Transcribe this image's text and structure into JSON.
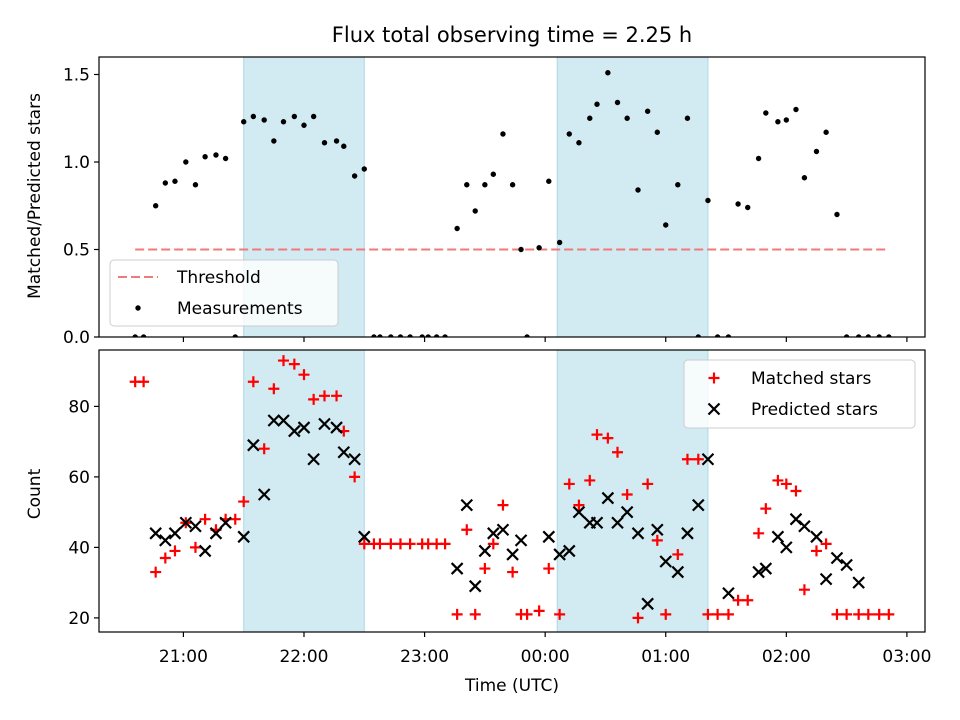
{
  "chart_data": [
    {
      "type": "scatter",
      "title": "Flux total observing time = 2.25 h",
      "ylabel": "Matched/Predicted stars",
      "xlabel": "",
      "ylim": [
        0.0,
        1.6
      ],
      "yticks": [
        0.0,
        0.5,
        1.0,
        1.5
      ],
      "ytick_labels": [
        "0.0",
        "0.5",
        "1.0",
        "1.5"
      ],
      "xlim_hours": [
        -3.7,
        3.15
      ],
      "xticks_hours": [
        -3,
        -2,
        -1,
        0,
        1,
        2,
        3
      ],
      "legend_position": "lower-left",
      "shaded_intervals_hours": [
        [
          -2.5,
          -1.5
        ],
        [
          0.1,
          1.35
        ]
      ],
      "shade_color": "#add8e6",
      "threshold": {
        "name": "Threshold",
        "value": 0.5,
        "x_start": -3.4,
        "x_end": 2.85,
        "color": "#f07a7a",
        "style": "dashed"
      },
      "series": [
        {
          "name": "Measurements",
          "color": "#000000",
          "marker": "dot",
          "x": [
            -3.4,
            -3.33,
            -3.23,
            -3.15,
            -3.07,
            -2.98,
            -2.9,
            -2.82,
            -2.73,
            -2.65,
            -2.57,
            -2.5,
            -2.42,
            -2.33,
            -2.25,
            -2.17,
            -2.08,
            -2.0,
            -1.92,
            -1.83,
            -1.73,
            -1.67,
            -1.58,
            -1.5,
            -1.42,
            -1.37,
            -1.28,
            -1.2,
            -1.12,
            -1.02,
            -0.97,
            -0.9,
            -0.83,
            -0.73,
            -0.65,
            -0.58,
            -0.5,
            -0.43,
            -0.35,
            -0.27,
            -0.2,
            -0.15,
            -0.05,
            0.03,
            0.12,
            0.2,
            0.28,
            0.37,
            0.43,
            0.52,
            0.6,
            0.68,
            0.77,
            0.85,
            0.93,
            1.0,
            1.1,
            1.18,
            1.27,
            1.35,
            1.43,
            1.52,
            1.6,
            1.68,
            1.77,
            1.83,
            1.93,
            2.0,
            2.08,
            2.15,
            2.25,
            2.33,
            2.42,
            2.5,
            2.6,
            2.68,
            2.77,
            2.85
          ],
          "y": [
            0.0,
            0.0,
            0.75,
            0.88,
            0.89,
            1.0,
            0.87,
            1.03,
            1.04,
            1.02,
            0.0,
            1.23,
            1.26,
            1.24,
            1.12,
            1.23,
            1.26,
            1.21,
            1.26,
            1.11,
            1.12,
            1.09,
            0.92,
            0.96,
            0.0,
            0.0,
            0.0,
            0.0,
            0.0,
            0.0,
            0.0,
            0.0,
            0.0,
            0.62,
            0.87,
            0.72,
            0.87,
            0.93,
            1.16,
            0.87,
            0.5,
            0.0,
            0.51,
            0.89,
            0.54,
            1.16,
            1.11,
            1.25,
            1.33,
            1.51,
            1.34,
            1.25,
            0.84,
            1.29,
            1.17,
            0.64,
            0.87,
            1.25,
            0.0,
            0.78,
            0.0,
            0.0,
            0.76,
            0.74,
            1.02,
            1.28,
            1.23,
            1.24,
            1.3,
            0.91,
            1.06,
            1.17,
            0.7,
            0.0,
            0.0,
            0.0,
            0.0,
            0.0
          ]
        }
      ]
    },
    {
      "type": "scatter",
      "ylabel": "Count",
      "xlabel": "Time (UTC)",
      "ylim": [
        16,
        96
      ],
      "yticks": [
        20,
        40,
        60,
        80
      ],
      "ytick_labels": [
        "20",
        "40",
        "60",
        "80"
      ],
      "xlim_hours": [
        -3.7,
        3.15
      ],
      "xticks_hours": [
        -3,
        -2,
        -1,
        0,
        1,
        2,
        3
      ],
      "xtick_labels": [
        "21:00",
        "22:00",
        "23:00",
        "00:00",
        "01:00",
        "02:00",
        "03:00"
      ],
      "legend_position": "upper-right",
      "shaded_intervals_hours": [
        [
          -2.5,
          -1.5
        ],
        [
          0.1,
          1.35
        ]
      ],
      "series": [
        {
          "name": "Matched stars",
          "color": "#ff0000",
          "marker": "plus",
          "x": [
            -3.4,
            -3.33,
            -3.23,
            -3.15,
            -3.07,
            -2.98,
            -2.9,
            -2.82,
            -2.73,
            -2.65,
            -2.57,
            -2.5,
            -2.42,
            -2.33,
            -2.25,
            -2.17,
            -2.08,
            -2.0,
            -1.92,
            -1.83,
            -1.73,
            -1.67,
            -1.58,
            -1.5,
            -1.42,
            -1.37,
            -1.28,
            -1.2,
            -1.12,
            -1.02,
            -0.97,
            -0.9,
            -0.83,
            -0.73,
            -0.65,
            -0.58,
            -0.5,
            -0.43,
            -0.35,
            -0.27,
            -0.2,
            -0.15,
            -0.05,
            0.03,
            0.12,
            0.2,
            0.28,
            0.37,
            0.43,
            0.52,
            0.6,
            0.68,
            0.77,
            0.85,
            0.93,
            1.0,
            1.1,
            1.18,
            1.27,
            1.35,
            1.43,
            1.52,
            1.6,
            1.68,
            1.77,
            1.83,
            1.93,
            2.0,
            2.08,
            2.15,
            2.25,
            2.33,
            2.42,
            2.5,
            2.6,
            2.68,
            2.77,
            2.85
          ],
          "y": [
            87,
            87,
            33,
            37,
            39,
            47,
            40,
            48,
            45,
            48,
            48,
            53,
            87,
            68,
            85,
            93,
            92,
            89,
            82,
            83,
            83,
            73,
            60,
            41,
            41,
            41,
            41,
            41,
            41,
            41,
            41,
            41,
            41,
            21,
            45,
            21,
            34,
            41,
            52,
            33,
            21,
            21,
            22,
            34,
            21,
            58,
            52,
            59,
            72,
            71,
            67,
            55,
            20,
            58,
            42,
            21,
            38,
            65,
            65,
            21,
            21,
            21,
            25,
            25,
            44,
            51,
            59,
            58,
            56,
            28,
            39,
            41,
            21,
            21,
            21,
            21,
            21,
            21
          ]
        },
        {
          "name": "Predicted stars",
          "color": "#000000",
          "marker": "x",
          "x": [
            -3.23,
            -3.15,
            -3.07,
            -2.98,
            -2.9,
            -2.82,
            -2.73,
            -2.65,
            -2.5,
            -2.42,
            -2.33,
            -2.25,
            -2.17,
            -2.08,
            -2.0,
            -1.92,
            -1.83,
            -1.73,
            -1.67,
            -1.58,
            -1.5,
            -0.73,
            -0.65,
            -0.58,
            -0.5,
            -0.43,
            -0.35,
            -0.27,
            -0.2,
            0.03,
            0.12,
            0.2,
            0.28,
            0.37,
            0.43,
            0.52,
            0.6,
            0.68,
            0.77,
            0.85,
            0.93,
            1.0,
            1.1,
            1.18,
            1.27,
            1.35,
            1.52,
            1.77,
            1.83,
            1.93,
            2.0,
            2.08,
            2.15,
            2.25,
            2.33,
            2.42,
            2.5,
            2.6
          ],
          "y": [
            44,
            42,
            44,
            47,
            46,
            39,
            44,
            47,
            43,
            69,
            55,
            76,
            76,
            73,
            74,
            65,
            75,
            74,
            67,
            65,
            43,
            34,
            52,
            29,
            39,
            44,
            45,
            38,
            42,
            43,
            38,
            39,
            50,
            47,
            47,
            54,
            47,
            50,
            44,
            24,
            45,
            36,
            33,
            44,
            52,
            65,
            27,
            33,
            34,
            43,
            40,
            48,
            46,
            43,
            31,
            37,
            35,
            30
          ]
        }
      ]
    }
  ]
}
